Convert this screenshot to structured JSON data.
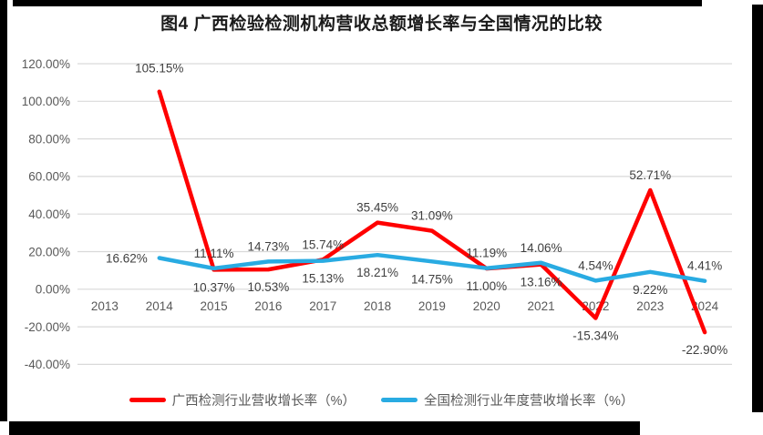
{
  "chart_data": {
    "type": "line",
    "title": "图4 广西检验检测机构营收总额增长率与全国情况的比较",
    "categories": [
      "2013",
      "2014",
      "2015",
      "2016",
      "2017",
      "2018",
      "2019",
      "2020",
      "2021",
      "2022",
      "2023",
      "2024"
    ],
    "series": [
      {
        "name": "广西检测行业营收增长率（%）",
        "color": "#FF0000",
        "values": [
          null,
          105.15,
          10.37,
          10.53,
          15.74,
          35.45,
          31.09,
          11.0,
          13.16,
          -15.34,
          52.71,
          -22.9
        ]
      },
      {
        "name": "全国检测行业年度营收增长率（%）",
        "color": "#29ABE2",
        "values": [
          null,
          16.62,
          11.11,
          14.73,
          15.13,
          18.21,
          14.75,
          11.19,
          14.06,
          4.54,
          9.22,
          4.41
        ]
      }
    ],
    "y_axis": {
      "min": -40,
      "max": 120,
      "step": 20,
      "tick_format": "0.00%"
    },
    "x_axis": {
      "label": ""
    },
    "ylabel": "",
    "xlabel": "",
    "grid": true,
    "data_labels": true,
    "legend_position": "bottom",
    "colors": {
      "gridline": "#D9D9D9",
      "tick_label": "#595959",
      "data_label": "#3F3F3F",
      "title": "#1a1a1a",
      "frame": "#000000"
    }
  }
}
